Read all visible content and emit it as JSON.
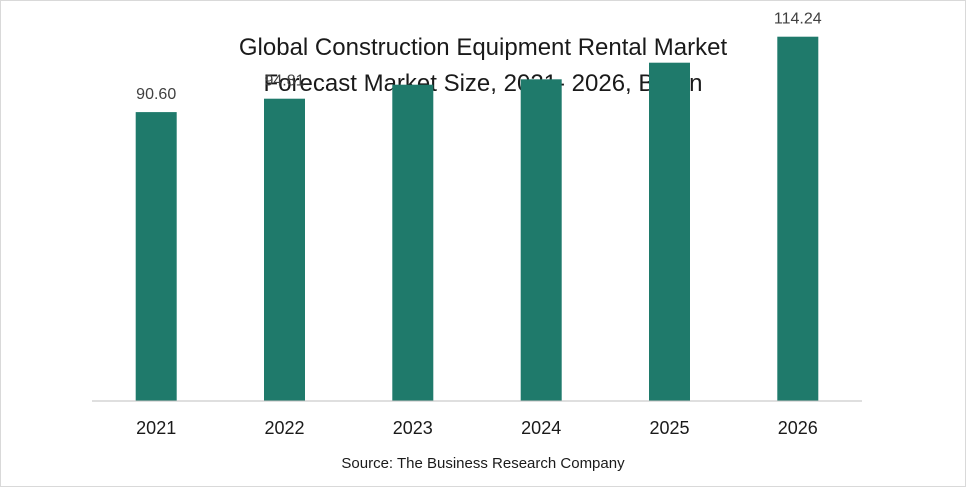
{
  "chart_data": {
    "type": "bar",
    "title": "Global Construction Equipment Rental Market",
    "subtitle": "Forecast Market Size, 2021- 2026, Billion",
    "categories": [
      "2021",
      "2022",
      "2023",
      "2024",
      "2025",
      "2026"
    ],
    "values": [
      90.6,
      94.81,
      99.2,
      100.9,
      106.1,
      114.24
    ],
    "data_labels": [
      "90.60",
      "94.81",
      "",
      "",
      "",
      "114.24"
    ],
    "xlabel": "",
    "ylabel": "",
    "ylim": [
      0,
      122
    ],
    "grid": false,
    "legend": "none",
    "bar_color": "#1f7a6b"
  },
  "source": "Source: The Business Research Company"
}
